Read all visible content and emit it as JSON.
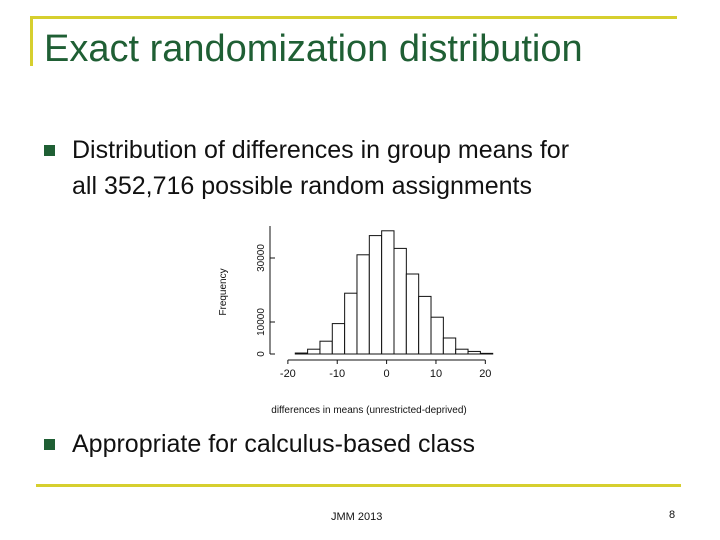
{
  "slide": {
    "title": "Exact randomization distribution",
    "bullets": [
      {
        "line1": "Distribution of differences in group means for",
        "line2": "all 352,716 possible random assignments"
      },
      {
        "line1": "Appropriate for calculus-based class"
      }
    ],
    "footer": "JMM 2013",
    "page_number": "8",
    "colors": {
      "title": "#1f5f34",
      "accent_rule": "#d6cf2e",
      "bullet": "#1f5f34"
    }
  },
  "chart_data": {
    "type": "bar",
    "title": "",
    "xlabel": "differences in means (unrestricted-deprived)",
    "ylabel": "Frequency",
    "x_ticks": [
      -20,
      -10,
      0,
      10,
      20
    ],
    "x_tick_labels": [
      "-20",
      "-10",
      "0",
      "10",
      "20"
    ],
    "y_ticks": [
      0,
      10000,
      30000
    ],
    "y_tick_labels": [
      "0",
      "10000",
      "30000"
    ],
    "xlim": [
      -22,
      25
    ],
    "ylim": [
      0,
      40000
    ],
    "bin_width": 2.5,
    "bin_edges_start": -18.5,
    "values": [
      300,
      1500,
      4000,
      9500,
      19000,
      31000,
      37000,
      38500,
      33000,
      25000,
      18000,
      11500,
      5000,
      1500,
      800,
      200
    ],
    "grid": false,
    "legend": "none"
  }
}
